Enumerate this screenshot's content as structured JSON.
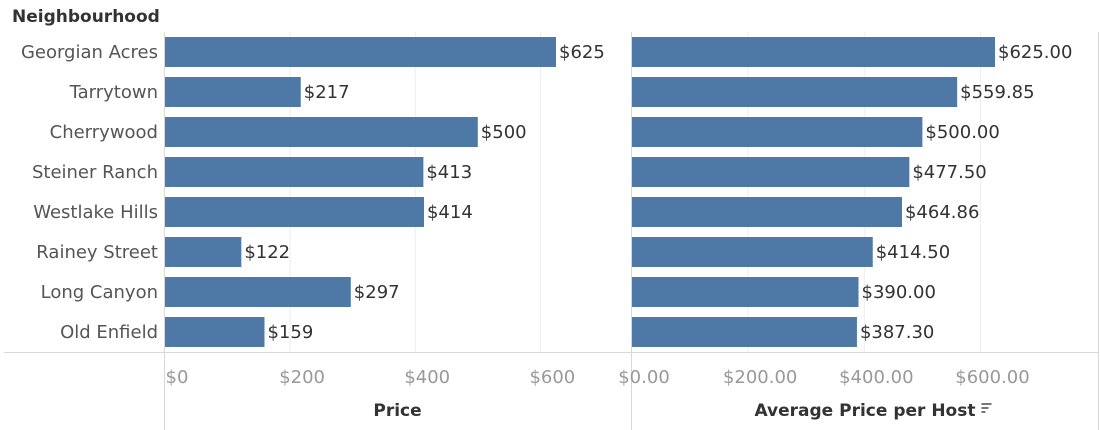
{
  "header": {
    "row_title": "Neighbourhood"
  },
  "chart_data": [
    {
      "type": "bar",
      "orientation": "horizontal",
      "title": "",
      "xlabel": "Price",
      "categories": [
        "Georgian Acres",
        "Tarrytown",
        "Cherrywood",
        "Steiner Ranch",
        "Westlake Hills",
        "Rainey Street",
        "Long Canyon",
        "Old Enfield"
      ],
      "values": [
        625,
        217,
        500,
        413,
        414,
        122,
        297,
        159
      ],
      "value_labels": [
        "$625",
        "$217",
        "$500",
        "$413",
        "$414",
        "$122",
        "$297",
        "$159"
      ],
      "xlim": [
        0,
        625
      ],
      "ticks": [
        0,
        200,
        400,
        600
      ],
      "tick_labels": [
        "$0",
        "$200",
        "$400",
        "$600"
      ],
      "grid": true
    },
    {
      "type": "bar",
      "orientation": "horizontal",
      "title": "",
      "xlabel": "Average Price per Host",
      "sorted": "descending",
      "categories": [
        "Georgian Acres",
        "Tarrytown",
        "Cherrywood",
        "Steiner Ranch",
        "Westlake Hills",
        "Rainey Street",
        "Long Canyon",
        "Old Enfield"
      ],
      "values": [
        625.0,
        559.85,
        500.0,
        477.5,
        464.86,
        414.5,
        390.0,
        387.3
      ],
      "value_labels": [
        "$625.00",
        "$559.85",
        "$500.00",
        "$477.50",
        "$464.86",
        "$414.50",
        "$390.00",
        "$387.30"
      ],
      "xlim": [
        0,
        780
      ],
      "ticks": [
        0,
        200,
        400,
        600
      ],
      "tick_labels": [
        "$0.00",
        "$200.00",
        "$400.00",
        "$600.00"
      ],
      "grid": true
    }
  ],
  "colors": {
    "bar": "#4e79a7"
  },
  "icons": {
    "sort": "sort-descending-icon"
  }
}
